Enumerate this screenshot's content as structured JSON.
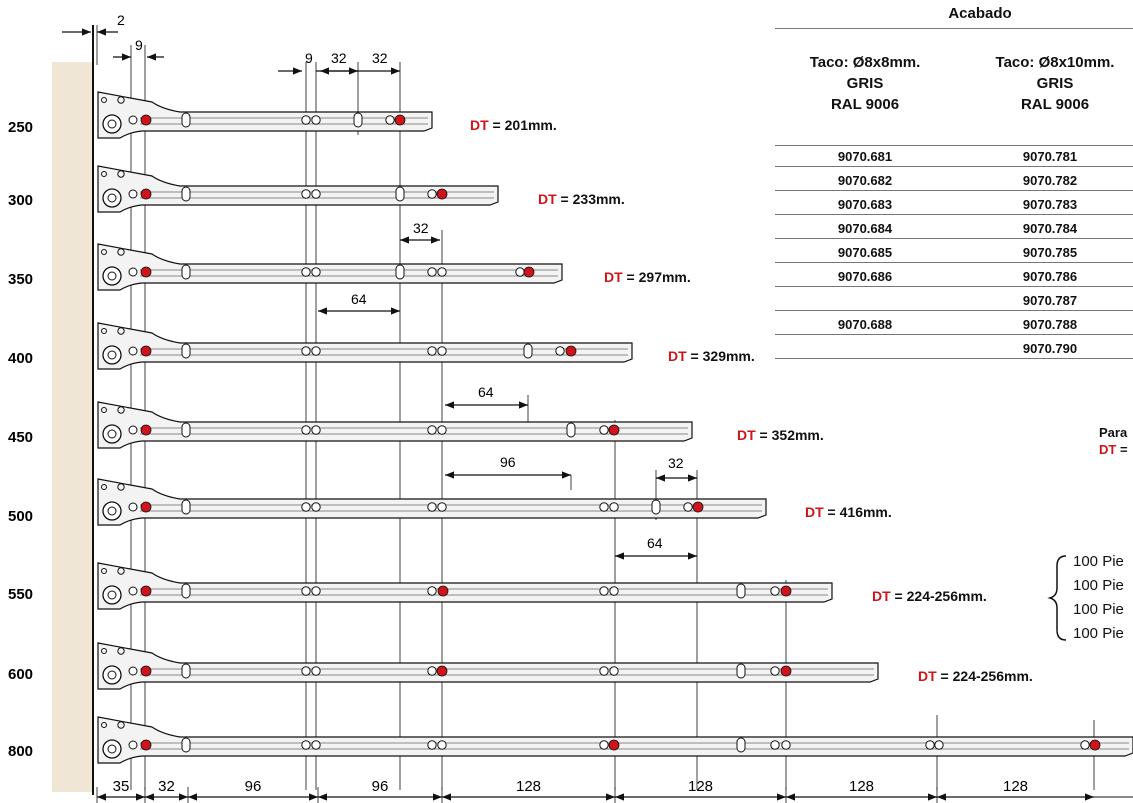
{
  "colors": {
    "accent": "#d0141c",
    "wall": "#efe6d6",
    "rail": "#e2e2e2",
    "line": "#111111"
  },
  "top_dims": {
    "gap": "2",
    "first": "9",
    "mid_a": "9",
    "mid_b": "32",
    "mid_c": "32"
  },
  "lengths": [
    "250",
    "300",
    "350",
    "400",
    "450",
    "500",
    "550",
    "600",
    "800"
  ],
  "dt": {
    "prefix": "DT",
    "values": [
      " = 201mm.",
      " = 233mm.",
      " = 297mm.",
      " = 329mm.",
      " = 352mm.",
      " = 416mm.",
      " = 224-256mm.",
      " = 224-256mm."
    ]
  },
  "inner_dims": [
    "32",
    "64",
    "64",
    "96",
    "32",
    "64"
  ],
  "bottom_dims": [
    "35",
    "32",
    "96",
    "96",
    "128",
    "128",
    "128",
    "128"
  ],
  "table": {
    "title": "Acabado",
    "col1": {
      "l1": "Taco: Ø8x8mm.",
      "l2": "GRIS",
      "l3": "RAL 9006"
    },
    "col2": {
      "l1": "Taco: Ø8x10mm.",
      "l2": "GRIS",
      "l3": "RAL 9006"
    },
    "rows": [
      [
        "9070.681",
        "9070.781"
      ],
      [
        "9070.682",
        "9070.782"
      ],
      [
        "9070.683",
        "9070.783"
      ],
      [
        "9070.684",
        "9070.784"
      ],
      [
        "9070.685",
        "9070.785"
      ],
      [
        "9070.686",
        "9070.786"
      ],
      [
        "",
        "9070.787"
      ],
      [
        "9070.688",
        "9070.788"
      ],
      [
        "",
        "9070.790"
      ]
    ]
  },
  "side_note": {
    "l1": "Para",
    "l2_prefix": "DT",
    "l2_rest": " ="
  },
  "packs": [
    "100  Pie",
    "100  Pie",
    "100  Pie",
    "100  Pie"
  ]
}
